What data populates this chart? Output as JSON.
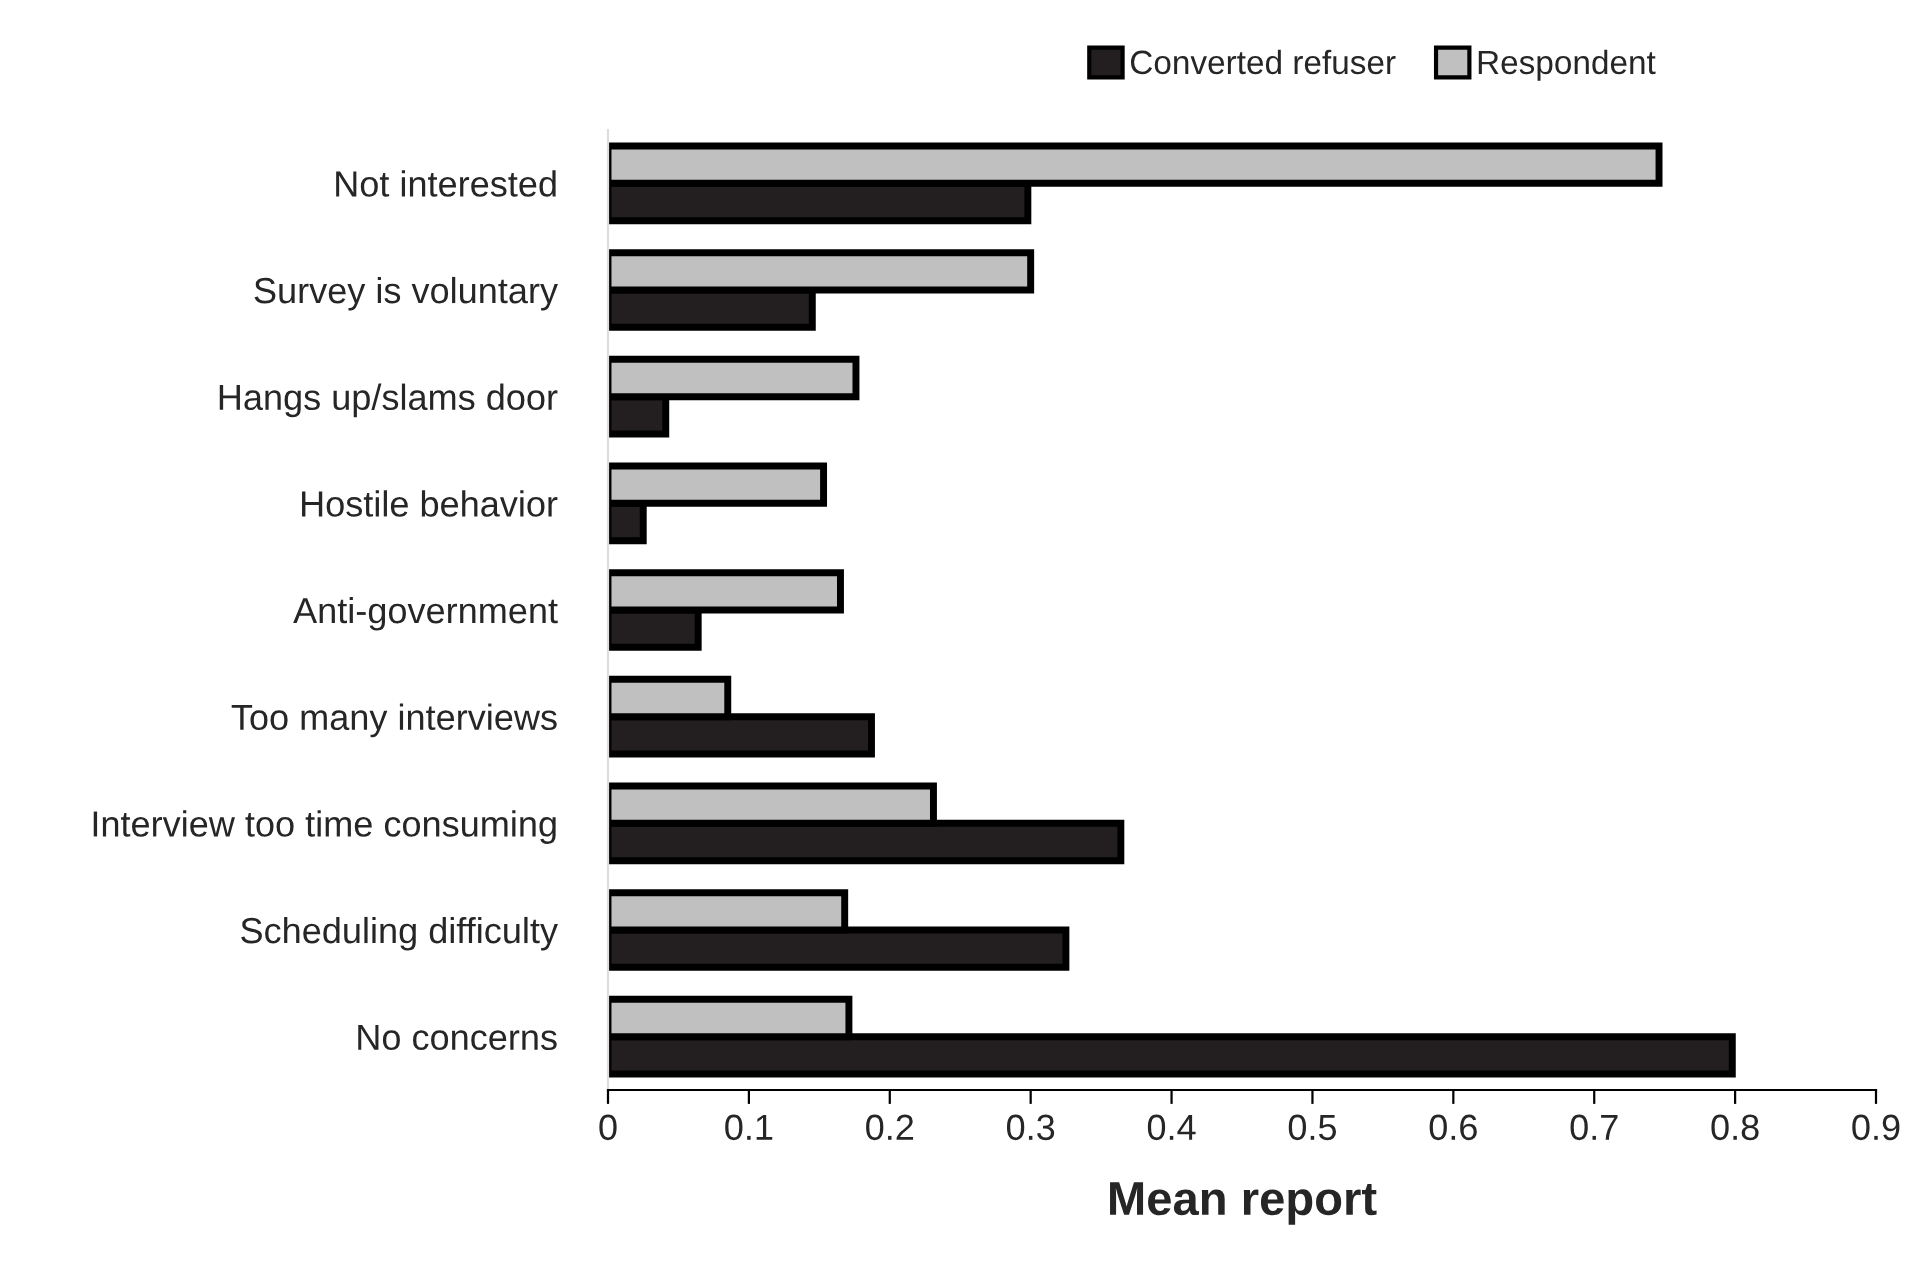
{
  "chart_data": {
    "type": "bar",
    "orientation": "horizontal",
    "xlabel": "Mean report",
    "categories": [
      "Not interested",
      "Survey is voluntary",
      "Hangs up/slams door",
      "Hostile behavior",
      "Anti-government",
      "Too many interviews",
      "Interview too time consuming",
      "Scheduling difficulty",
      "No concerns"
    ],
    "series": [
      {
        "name": "Converted refuser",
        "color": "#231f20",
        "values": [
          0.298,
          0.145,
          0.041,
          0.025,
          0.064,
          0.187,
          0.364,
          0.325,
          0.798
        ]
      },
      {
        "name": "Respondent",
        "color": "#c0c0c0",
        "values": [
          0.746,
          0.3,
          0.176,
          0.153,
          0.165,
          0.085,
          0.231,
          0.168,
          0.171
        ]
      }
    ],
    "xlim": [
      0,
      0.9
    ],
    "xticks": [
      0,
      0.1,
      0.2,
      0.3,
      0.4,
      0.5,
      0.6,
      0.7,
      0.8,
      0.9
    ],
    "grid": false,
    "legend": "top right"
  }
}
